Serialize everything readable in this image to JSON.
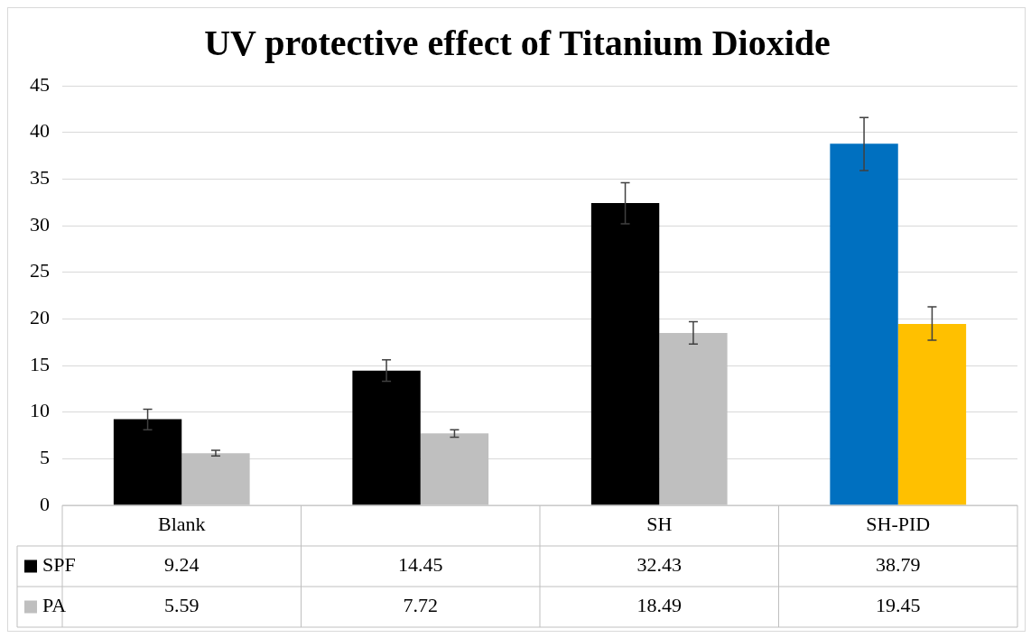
{
  "chart_data": {
    "type": "bar",
    "title": "UV protective effect of Titanium Dioxide",
    "categories": [
      "Blank",
      null,
      "SH",
      "SH-PID"
    ],
    "series": [
      {
        "name": "SPF",
        "color": "#000000",
        "colors": [
          "#000000",
          "#000000",
          "#000000",
          "#0070c0"
        ],
        "values": [
          9.24,
          14.45,
          32.43,
          38.79
        ],
        "errors": [
          [
            8.1,
            10.3
          ],
          [
            13.3,
            15.6
          ],
          [
            30.2,
            34.6
          ],
          [
            35.9,
            41.6
          ]
        ]
      },
      {
        "name": "PA",
        "color": "#bfbfbf",
        "colors": [
          "#bfbfbf",
          "#bfbfbf",
          "#bfbfbf",
          "#ffc000"
        ],
        "values": [
          5.59,
          7.72,
          18.49,
          19.45
        ],
        "errors": [
          [
            5.3,
            5.9
          ],
          [
            7.3,
            8.1
          ],
          [
            17.3,
            19.7
          ],
          [
            17.7,
            21.3
          ]
        ]
      }
    ],
    "ylim": [
      0,
      45
    ],
    "yticks": [
      0,
      5,
      10,
      15,
      20,
      25,
      30,
      35,
      40,
      45
    ],
    "grid": "y",
    "legend": "bottom",
    "data_labels": true
  }
}
